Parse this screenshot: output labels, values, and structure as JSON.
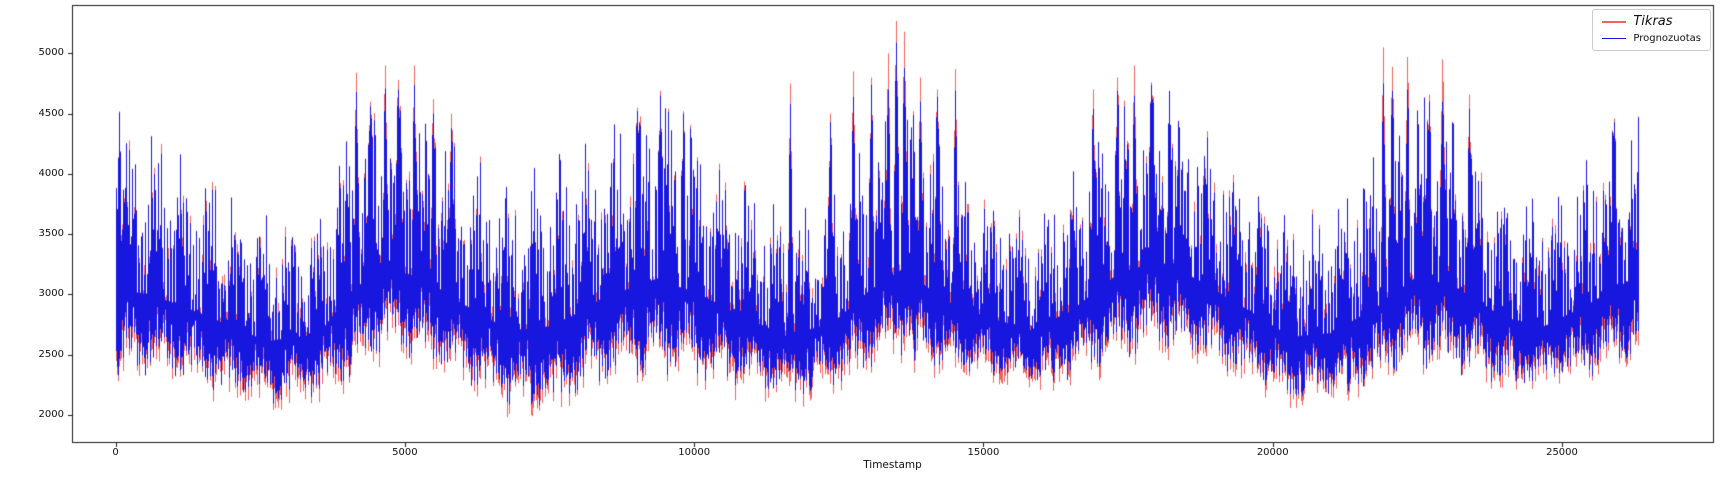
{
  "chart_data": {
    "type": "line",
    "title": "",
    "xlabel": "Timestamp",
    "ylabel": "",
    "grid": false,
    "background": "#ffffff",
    "spine_color": "#1a1a1a",
    "xlim": [
      -754,
      27610
    ],
    "ylim": [
      1776,
      5402
    ],
    "x_ticks": [
      0,
      5000,
      10000,
      15000,
      20000,
      25000
    ],
    "y_ticks": [
      2000,
      2500,
      3000,
      3500,
      4000,
      4500,
      5000
    ],
    "x_data_range": [
      0,
      26315
    ],
    "legend": {
      "position": "upper right",
      "entries": [
        {
          "label": "Tikras",
          "color": "#f4635c",
          "line_width": 2.5
        },
        {
          "label": "Prognozuotas",
          "color": "#1717e0",
          "line_width": 1.5
        }
      ]
    },
    "series": [
      {
        "name": "Tikras",
        "color": "#f4635c",
        "role": "actual",
        "draw_order": 1
      },
      {
        "name": "Prognozuotas",
        "color": "#1717e0",
        "role": "forecast",
        "draw_order": 2
      }
    ],
    "envelope": {
      "comment": "Typical per-timestamp band (dense oscillation fills between bottom and top); read off pixels",
      "t": [
        0,
        600,
        1500,
        2600,
        3500,
        4100,
        4700,
        5300,
        6000,
        6800,
        7600,
        8400,
        9300,
        10000,
        10800,
        11600,
        12400,
        13000,
        13600,
        14300,
        15000,
        15800,
        16500,
        17300,
        18000,
        18700,
        19500,
        20300,
        21000,
        21800,
        22500,
        23200,
        24000,
        24700,
        25400,
        26315
      ],
      "top": [
        4480,
        4280,
        4000,
        3620,
        3700,
        4450,
        4620,
        4480,
        4150,
        3900,
        4100,
        4380,
        4620,
        4420,
        3950,
        3640,
        3800,
        4250,
        4600,
        4150,
        3850,
        3620,
        3950,
        4550,
        4680,
        4420,
        4050,
        3650,
        3720,
        4150,
        4620,
        4420,
        3900,
        3700,
        4080,
        4470
      ],
      "bottom": [
        2290,
        2340,
        2230,
        2090,
        2140,
        2330,
        2490,
        2440,
        2280,
        2080,
        2040,
        2240,
        2350,
        2300,
        2240,
        2140,
        2240,
        2390,
        2500,
        2340,
        2290,
        2230,
        2300,
        2450,
        2560,
        2450,
        2290,
        2130,
        2140,
        2250,
        2400,
        2340,
        2240,
        2240,
        2300,
        2480
      ]
    },
    "spikes_up": [
      {
        "t": 60,
        "tikras": 4520,
        "prognozuotas": 4510
      },
      {
        "t": 4150,
        "tikras": 4840,
        "prognozuotas": 4680
      },
      {
        "t": 4400,
        "tikras": 4600,
        "prognozuotas": 4560
      },
      {
        "t": 4650,
        "tikras": 4900,
        "prognozuotas": 4710
      },
      {
        "t": 4870,
        "tikras": 4780,
        "prognozuotas": 4700
      },
      {
        "t": 5150,
        "tikras": 4900,
        "prognozuotas": 4740
      },
      {
        "t": 5480,
        "tikras": 4620,
        "prognozuotas": 4500
      },
      {
        "t": 5800,
        "tikras": 4500,
        "prognozuotas": 4380
      },
      {
        "t": 9000,
        "tikras": 4550,
        "prognozuotas": 4520
      },
      {
        "t": 9400,
        "tikras": 4690,
        "prognozuotas": 4650
      },
      {
        "t": 9800,
        "tikras": 4520,
        "prognozuotas": 4500
      },
      {
        "t": 11650,
        "tikras": 4750,
        "prognozuotas": 4580
      },
      {
        "t": 12350,
        "tikras": 4500,
        "prognozuotas": 4430
      },
      {
        "t": 12750,
        "tikras": 4850,
        "prognozuotas": 4640
      },
      {
        "t": 13050,
        "tikras": 4800,
        "prognozuotas": 4740
      },
      {
        "t": 13350,
        "tikras": 5000,
        "prognozuotas": 4700
      },
      {
        "t": 13490,
        "tikras": 5270,
        "prognozuotas": 5090
      },
      {
        "t": 13620,
        "tikras": 5180,
        "prognozuotas": 4880
      },
      {
        "t": 13900,
        "tikras": 4800,
        "prognozuotas": 4600
      },
      {
        "t": 14200,
        "tikras": 4700,
        "prognozuotas": 4640
      },
      {
        "t": 14500,
        "tikras": 4870,
        "prognozuotas": 4690
      },
      {
        "t": 16900,
        "tikras": 4700,
        "prognozuotas": 4540
      },
      {
        "t": 17300,
        "tikras": 4800,
        "prognozuotas": 4690
      },
      {
        "t": 17600,
        "tikras": 4900,
        "prognozuotas": 4650
      },
      {
        "t": 17900,
        "tikras": 4760,
        "prognozuotas": 4740
      },
      {
        "t": 18200,
        "tikras": 4660,
        "prognozuotas": 4690
      },
      {
        "t": 21900,
        "tikras": 5050,
        "prognozuotas": 4750
      },
      {
        "t": 22060,
        "tikras": 4890,
        "prognozuotas": 4690
      },
      {
        "t": 22320,
        "tikras": 4970,
        "prognozuotas": 4700
      },
      {
        "t": 22700,
        "tikras": 4660,
        "prognozuotas": 4600
      },
      {
        "t": 22920,
        "tikras": 4950,
        "prognozuotas": 4600
      },
      {
        "t": 23400,
        "tikras": 4660,
        "prognozuotas": 4540
      },
      {
        "t": 25900,
        "tikras": 4460,
        "prognozuotas": 4430
      }
    ],
    "spikes_down": [
      {
        "t": 30,
        "tikras": 2280,
        "prognozuotas": 2330
      },
      {
        "t": 2800,
        "tikras": 2060,
        "prognozuotas": 2140
      },
      {
        "t": 4050,
        "tikras": 2330,
        "prognozuotas": 2420
      },
      {
        "t": 7200,
        "tikras": 1990,
        "prognozuotas": 2110
      },
      {
        "t": 9100,
        "tikras": 2280,
        "prognozuotas": 2350
      },
      {
        "t": 12000,
        "tikras": 2120,
        "prognozuotas": 2200
      },
      {
        "t": 13800,
        "tikras": 2350,
        "prognozuotas": 2450
      },
      {
        "t": 16200,
        "tikras": 2200,
        "prognozuotas": 2280
      },
      {
        "t": 20500,
        "tikras": 2080,
        "prognozuotas": 2160
      },
      {
        "t": 21300,
        "tikras": 2120,
        "prognozuotas": 2200
      },
      {
        "t": 24200,
        "tikras": 2210,
        "prognozuotas": 2280
      },
      {
        "t": 26100,
        "tikras": 2400,
        "prognozuotas": 2470
      }
    ],
    "synthesis": {
      "seed": 1337,
      "red_below_blue_max": 125,
      "red_above_blue_max": 90
    }
  }
}
